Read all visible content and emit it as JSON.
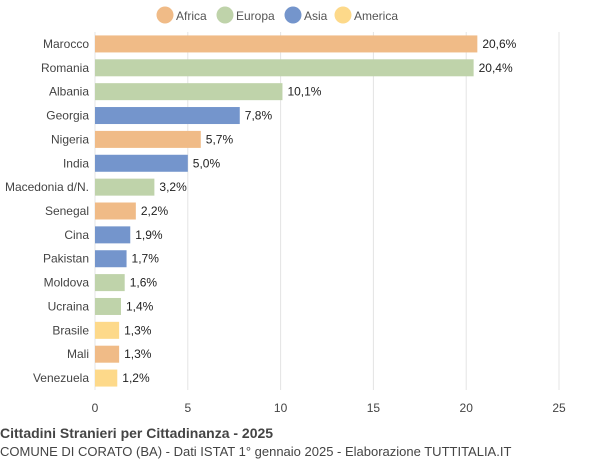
{
  "chart_data": {
    "type": "bar",
    "orientation": "horizontal",
    "categories": [
      "Marocco",
      "Romania",
      "Albania",
      "Georgia",
      "Nigeria",
      "India",
      "Macedonia d/N.",
      "Senegal",
      "Cina",
      "Pakistan",
      "Moldova",
      "Ucraina",
      "Brasile",
      "Mali",
      "Venezuela"
    ],
    "values": [
      20.6,
      20.4,
      10.1,
      7.8,
      5.7,
      5.0,
      3.2,
      2.2,
      1.9,
      1.7,
      1.6,
      1.4,
      1.3,
      1.3,
      1.2
    ],
    "value_labels": [
      "20,6%",
      "20,4%",
      "10,1%",
      "7,8%",
      "5,7%",
      "5,0%",
      "3,2%",
      "2,2%",
      "1,9%",
      "1,7%",
      "1,6%",
      "1,4%",
      "1,3%",
      "1,3%",
      "1,2%"
    ],
    "groups": [
      "Africa",
      "Europa",
      "Europa",
      "Asia",
      "Africa",
      "Asia",
      "Europa",
      "Africa",
      "Asia",
      "Asia",
      "Europa",
      "Europa",
      "America",
      "Africa",
      "America"
    ],
    "legend": [
      {
        "name": "Africa",
        "color": "#f0bb87"
      },
      {
        "name": "Europa",
        "color": "#bfd3aa"
      },
      {
        "name": "Asia",
        "color": "#7495cc"
      },
      {
        "name": "America",
        "color": "#fdd98a"
      }
    ],
    "legend_position": "top",
    "xlim": [
      0,
      25
    ],
    "xticks": [
      "0",
      "5",
      "10",
      "15",
      "20",
      "25"
    ],
    "grid": true
  },
  "title": "Cittadini Stranieri per Cittadinanza - 2025",
  "subtitle": "COMUNE DI CORATO (BA) - Dati ISTAT 1° gennaio 2025 - Elaborazione TUTTITALIA.IT"
}
